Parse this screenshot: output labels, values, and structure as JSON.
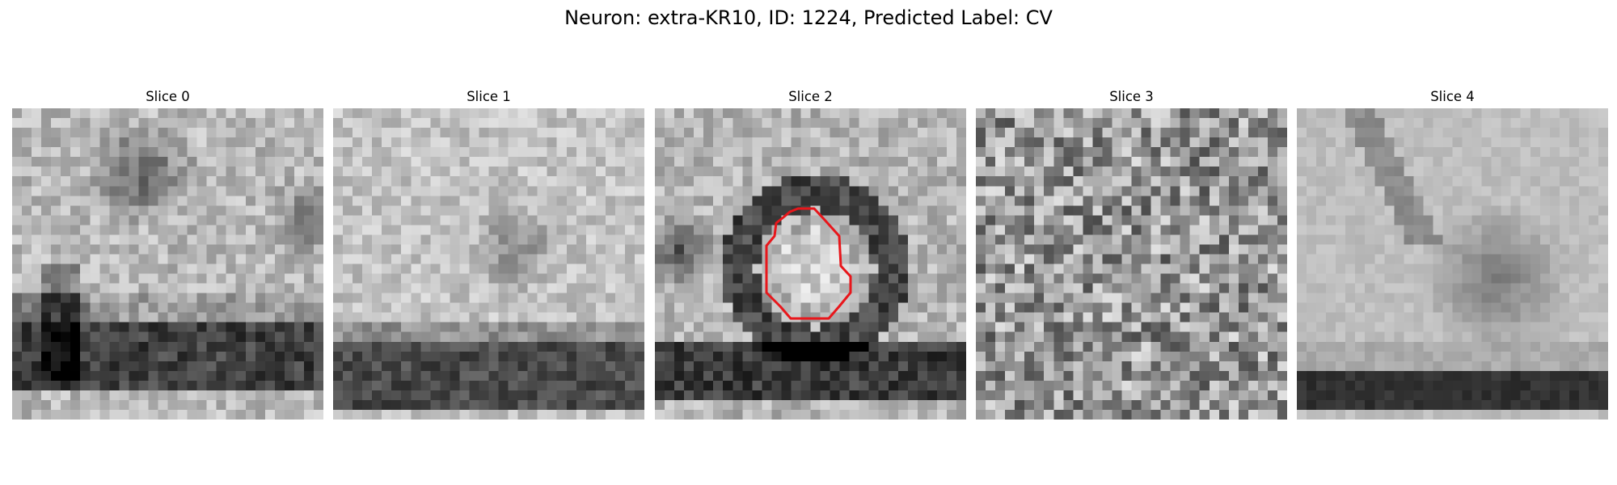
{
  "figure": {
    "title": "Neuron: extra-KR10, ID: 1224, Predicted Label: CV"
  },
  "panels": [
    {
      "title": "Slice 0",
      "has_contour": false
    },
    {
      "title": "Slice 1",
      "has_contour": false
    },
    {
      "title": "Slice 2",
      "has_contour": true
    },
    {
      "title": "Slice 3",
      "has_contour": false
    },
    {
      "title": "Slice 4",
      "has_contour": false
    }
  ],
  "colors": {
    "background": "#ffffff",
    "contour": "#e8161b"
  }
}
